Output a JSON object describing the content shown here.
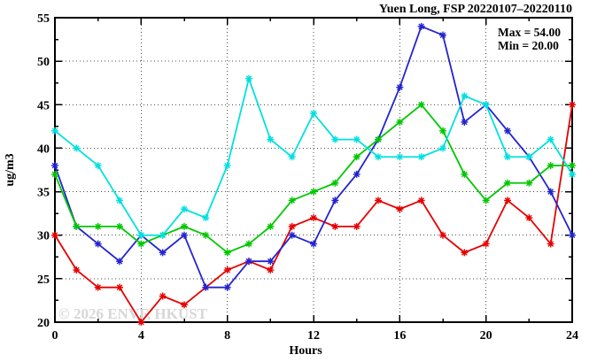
{
  "chart": {
    "title": "Yuen Long, FSP 20220107–20220110",
    "ylabel": "ug/m3",
    "xlabel": "Hours",
    "watermark": "© 2026 ENVF, HKUST",
    "annotation": {
      "max_label": "Max = 54.00",
      "min_label": "Min = 20.00"
    }
  },
  "chart_data": {
    "type": "line",
    "title": "Yuen Long, FSP 20220107–20220110",
    "xlabel": "Hours",
    "ylabel": "ug/m3",
    "xlim": [
      0,
      24
    ],
    "ylim": [
      20,
      55
    ],
    "grid": true,
    "legend": "none",
    "marker": "asterisk",
    "annotations": [
      "Max = 54.00",
      "Min = 20.00"
    ],
    "x_major_ticks": [
      0,
      4,
      8,
      12,
      16,
      20,
      24
    ],
    "x_minor_ticks": [
      2,
      6,
      10,
      14,
      18,
      22
    ],
    "y_major_ticks": [
      20,
      25,
      30,
      35,
      40,
      45,
      50,
      55
    ],
    "y_minor_ticks": [
      22.5,
      27.5,
      32.5,
      37.5,
      42.5,
      47.5,
      52.5
    ],
    "x": [
      0,
      1,
      2,
      3,
      4,
      5,
      6,
      7,
      8,
      9,
      10,
      11,
      12,
      13,
      14,
      15,
      16,
      17,
      18,
      19,
      20,
      21,
      22,
      23,
      24
    ],
    "series": [
      {
        "name": "red",
        "color": "#e60000",
        "values": [
          30,
          26,
          24,
          24,
          20,
          23,
          22,
          24,
          26,
          27,
          26,
          31,
          32,
          31,
          31,
          34,
          33,
          34,
          30,
          28,
          29,
          34,
          32,
          29,
          45
        ]
      },
      {
        "name": "blue",
        "color": "#2323d0",
        "values": [
          38,
          31,
          29,
          27,
          30,
          28,
          30,
          24,
          24,
          27,
          27,
          30,
          29,
          34,
          37,
          41,
          47,
          54,
          53,
          43,
          45,
          42,
          39,
          35,
          30
        ]
      },
      {
        "name": "green",
        "color": "#00c800",
        "values": [
          37,
          31,
          31,
          31,
          29,
          30,
          31,
          30,
          28,
          29,
          31,
          34,
          35,
          36,
          39,
          41,
          43,
          45,
          42,
          37,
          34,
          36,
          36,
          38,
          38
        ]
      },
      {
        "name": "cyan",
        "color": "#00e0e0",
        "values": [
          42,
          40,
          38,
          34,
          30,
          30,
          33,
          32,
          38,
          48,
          41,
          39,
          44,
          41,
          41,
          39,
          39,
          39,
          40,
          46,
          45,
          39,
          39,
          41,
          37
        ]
      }
    ],
    "max_value": 54.0,
    "min_value": 20.0
  }
}
